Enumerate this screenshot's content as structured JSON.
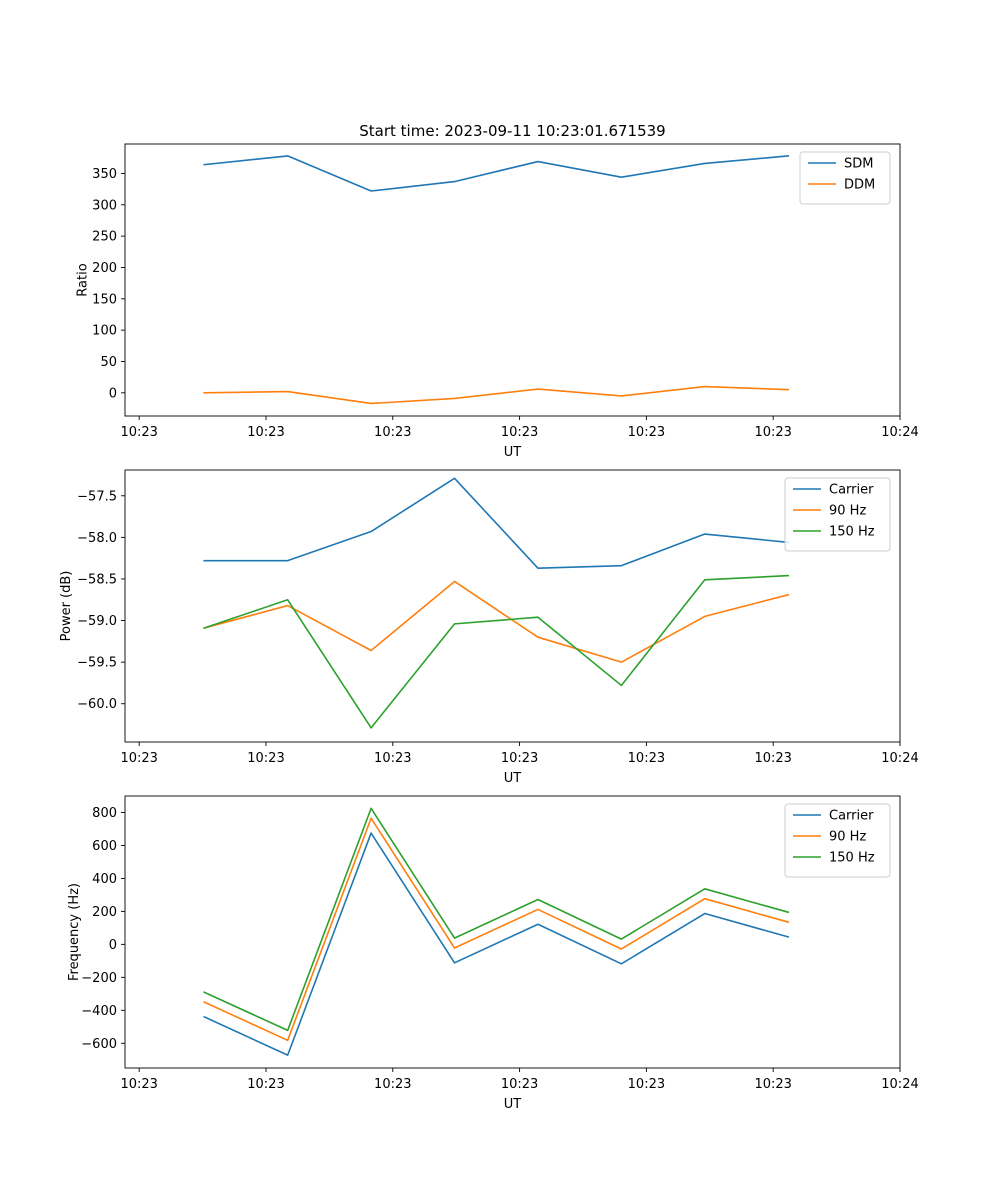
{
  "figure": {
    "title": "Start time: 2023-09-11 10:23:01.671539"
  },
  "colors": {
    "blue": "#1f77b4",
    "orange": "#ff7f0e",
    "green": "#2ca02c"
  },
  "chart_data": [
    {
      "type": "line",
      "title": "Start time: 2023-09-11 10:23:01.671539",
      "xlabel": "UT",
      "ylabel": "Ratio",
      "x": [
        1,
        2,
        3,
        4,
        5,
        6,
        7,
        8
      ],
      "xlim": [
        0.05,
        9.34
      ],
      "xticks": [
        0.22,
        1.74,
        3.26,
        4.78,
        6.3,
        7.82,
        9.34
      ],
      "xticklabels": [
        "10:23",
        "10:23",
        "10:23",
        "10:23",
        "10:23",
        "10:23",
        "10:24"
      ],
      "ylim": [
        -37,
        397
      ],
      "yticks": [
        0,
        50,
        100,
        150,
        200,
        250,
        300,
        350
      ],
      "yticklabels": [
        "0",
        "50",
        "100",
        "150",
        "200",
        "250",
        "300",
        "350"
      ],
      "legend": "top-right",
      "series": [
        {
          "name": "SDM",
          "color": "#1f77b4",
          "values": [
            364,
            378,
            322,
            337,
            369,
            344,
            366,
            378
          ]
        },
        {
          "name": "DDM",
          "color": "#ff7f0e",
          "values": [
            0,
            2,
            -17,
            -9,
            6,
            -5,
            10,
            5
          ]
        }
      ]
    },
    {
      "type": "line",
      "title": "",
      "xlabel": "UT",
      "ylabel": "Power (dB)",
      "x": [
        1,
        2,
        3,
        4,
        5,
        6,
        7,
        8
      ],
      "xlim": [
        0.05,
        9.34
      ],
      "xticks": [
        0.22,
        1.74,
        3.26,
        4.78,
        6.3,
        7.82,
        9.34
      ],
      "xticklabels": [
        "10:23",
        "10:23",
        "10:23",
        "10:23",
        "10:23",
        "10:23",
        "10:24"
      ],
      "ylim": [
        -60.46,
        -57.19
      ],
      "yticks": [
        -60.0,
        -59.5,
        -59.0,
        -58.5,
        -58.0,
        -57.5
      ],
      "yticklabels": [
        "−60.0",
        "−59.5",
        "−59.0",
        "−58.5",
        "−58.0",
        "−57.5"
      ],
      "legend": "top-right",
      "series": [
        {
          "name": "Carrier",
          "color": "#1f77b4",
          "values": [
            -58.28,
            -58.28,
            -57.93,
            -57.29,
            -58.37,
            -58.34,
            -57.96,
            -58.06
          ]
        },
        {
          "name": "90 Hz",
          "color": "#ff7f0e",
          "values": [
            -59.09,
            -58.82,
            -59.36,
            -58.53,
            -59.2,
            -59.5,
            -58.95,
            -58.69
          ]
        },
        {
          "name": "150 Hz",
          "color": "#2ca02c",
          "values": [
            -59.09,
            -58.75,
            -60.29,
            -59.04,
            -58.96,
            -59.78,
            -58.51,
            -58.46
          ]
        }
      ]
    },
    {
      "type": "line",
      "title": "",
      "xlabel": "UT",
      "ylabel": "Frequency (Hz)",
      "x": [
        1,
        2,
        3,
        4,
        5,
        6,
        7,
        8
      ],
      "xlim": [
        0.05,
        9.34
      ],
      "xticks": [
        0.22,
        1.74,
        3.26,
        4.78,
        6.3,
        7.82,
        9.34
      ],
      "xticklabels": [
        "10:23",
        "10:23",
        "10:23",
        "10:23",
        "10:23",
        "10:23",
        "10:24"
      ],
      "ylim": [
        -750,
        900
      ],
      "yticks": [
        -600,
        -400,
        -200,
        0,
        200,
        400,
        600,
        800
      ],
      "yticklabels": [
        "−600",
        "−400",
        "−200",
        "0",
        "200",
        "400",
        "600",
        "800"
      ],
      "legend": "top-right",
      "series": [
        {
          "name": "Carrier",
          "color": "#1f77b4",
          "values": [
            -440,
            -672,
            675,
            -112,
            122,
            -118,
            187,
            45
          ]
        },
        {
          "name": "90 Hz",
          "color": "#ff7f0e",
          "values": [
            -350,
            -582,
            765,
            -22,
            212,
            -28,
            277,
            135
          ]
        },
        {
          "name": "150 Hz",
          "color": "#2ca02c",
          "values": [
            -290,
            -522,
            825,
            38,
            272,
            32,
            337,
            195
          ]
        }
      ]
    }
  ]
}
